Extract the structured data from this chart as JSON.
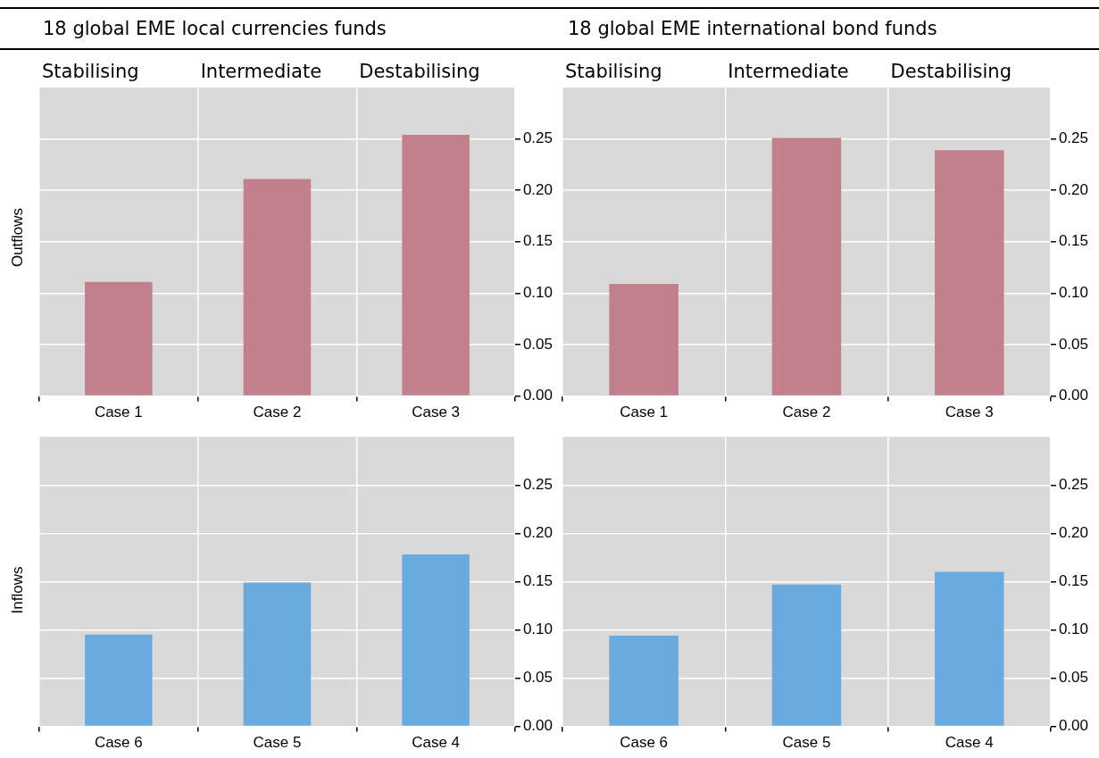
{
  "chart_data": [
    {
      "type": "bar",
      "title": "18 global EME local currencies funds",
      "ylabel": "Outflows",
      "annotations": [
        "Stabilising",
        "Intermediate",
        "Destabilising"
      ],
      "categories": [
        "Case 1",
        "Case 2",
        "Case 3"
      ],
      "values": [
        0.111,
        0.211,
        0.254
      ],
      "color": "#c27f8c",
      "ylim": [
        0,
        0.3
      ],
      "yticks": [
        {
          "value": 0,
          "label": "0.00"
        },
        {
          "value": 0.05,
          "label": "0.05"
        },
        {
          "value": 0.1,
          "label": "0.10"
        },
        {
          "value": 0.15,
          "label": "0.15"
        },
        {
          "value": 0.2,
          "label": "0.20"
        },
        {
          "value": 0.25,
          "label": "0.25"
        }
      ],
      "grid": true
    },
    {
      "type": "bar",
      "title": "18 global EME international bond funds",
      "annotations": [
        "Stabilising",
        "Intermediate",
        "Destabilising"
      ],
      "categories": [
        "Case 1",
        "Case 2",
        "Case 3"
      ],
      "values": [
        0.109,
        0.251,
        0.239
      ],
      "color": "#c27f8c",
      "ylim": [
        0,
        0.3
      ],
      "yticks": [
        {
          "value": 0,
          "label": "0.00"
        },
        {
          "value": 0.05,
          "label": "0.05"
        },
        {
          "value": 0.1,
          "label": "0.10"
        },
        {
          "value": 0.15,
          "label": "0.15"
        },
        {
          "value": 0.2,
          "label": "0.20"
        },
        {
          "value": 0.25,
          "label": "0.25"
        }
      ],
      "grid": true
    },
    {
      "type": "bar",
      "ylabel": "Inflows",
      "categories": [
        "Case 6",
        "Case 5",
        "Case 4"
      ],
      "values": [
        0.095,
        0.149,
        0.178
      ],
      "color": "#6aabdf",
      "ylim": [
        0,
        0.3
      ],
      "yticks": [
        {
          "value": 0,
          "label": "0.00"
        },
        {
          "value": 0.05,
          "label": "0.05"
        },
        {
          "value": 0.1,
          "label": "0.10"
        },
        {
          "value": 0.15,
          "label": "0.15"
        },
        {
          "value": 0.2,
          "label": "0.20"
        },
        {
          "value": 0.25,
          "label": "0.25"
        }
      ],
      "grid": true
    },
    {
      "type": "bar",
      "categories": [
        "Case 6",
        "Case 5",
        "Case 4"
      ],
      "values": [
        0.094,
        0.147,
        0.16
      ],
      "color": "#6aabdf",
      "ylim": [
        0,
        0.3
      ],
      "yticks": [
        {
          "value": 0,
          "label": "0.00"
        },
        {
          "value": 0.05,
          "label": "0.05"
        },
        {
          "value": 0.1,
          "label": "0.10"
        },
        {
          "value": 0.15,
          "label": "0.15"
        },
        {
          "value": 0.2,
          "label": "0.20"
        },
        {
          "value": 0.25,
          "label": "0.25"
        }
      ],
      "grid": true
    }
  ]
}
